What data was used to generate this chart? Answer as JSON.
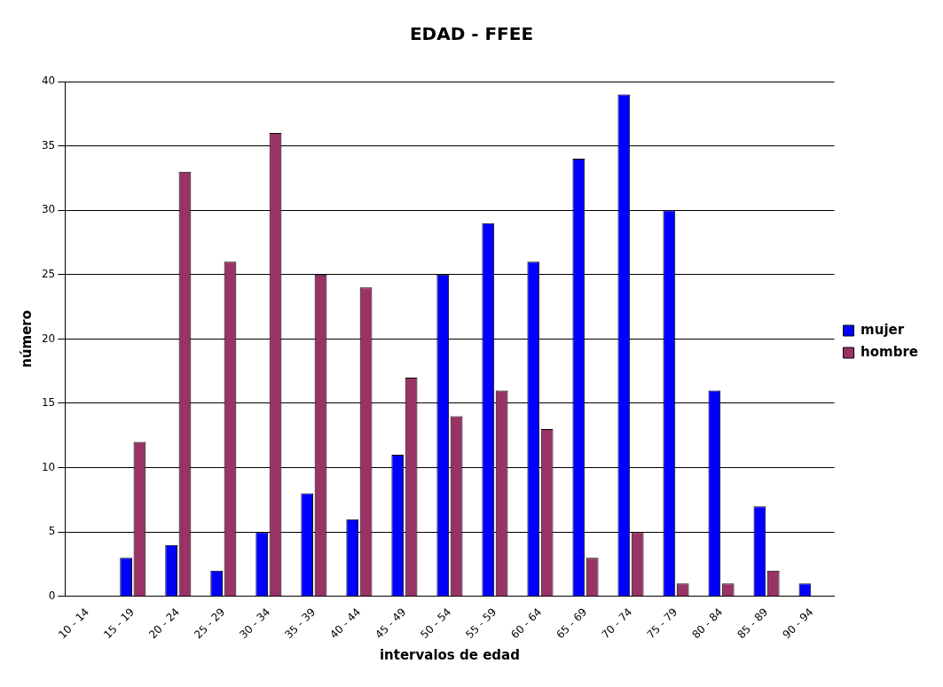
{
  "chart_data": {
    "type": "bar",
    "title": "EDAD - FFEE",
    "xlabel": "intervalos de edad",
    "ylabel": "número",
    "categories": [
      "10 - 14",
      "15 - 19",
      "20 - 24",
      "25 - 29",
      "30 - 34",
      "35 - 39",
      "40 - 44",
      "45 - 49",
      "50 - 54",
      "55 - 59",
      "60 - 64",
      "65 - 69",
      "70 - 74",
      "75 - 79",
      "80 - 84",
      "85 - 89",
      "90 - 94"
    ],
    "series": [
      {
        "name": "mujer",
        "color": "#0000ff",
        "values": [
          0,
          3,
          4,
          2,
          5,
          8,
          6,
          11,
          25,
          29,
          26,
          34,
          39,
          30,
          16,
          7,
          1
        ]
      },
      {
        "name": "hombre",
        "color": "#993366",
        "values": [
          0,
          12,
          33,
          26,
          36,
          25,
          24,
          17,
          14,
          16,
          13,
          3,
          5,
          1,
          1,
          2,
          0
        ]
      }
    ],
    "ylim": [
      0,
      40
    ],
    "yticks": [
      0,
      5,
      10,
      15,
      20,
      25,
      30,
      35,
      40
    ],
    "grid": "y",
    "legend": "right"
  }
}
